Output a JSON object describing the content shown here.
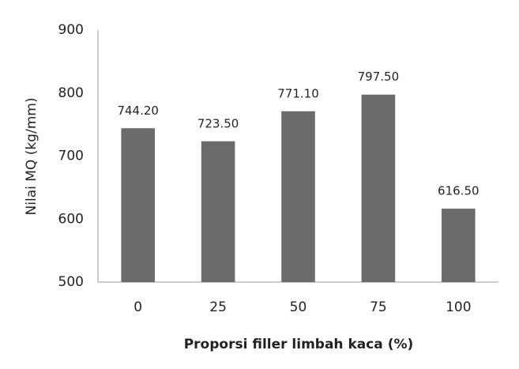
{
  "chart_data": {
    "type": "bar",
    "x_label": "Proporsi filler limbah kaca (%)",
    "y_label": "Nilai MQ (kg/mm)",
    "categories": [
      "0",
      "25",
      "50",
      "75",
      "100"
    ],
    "values": [
      744.2,
      723.5,
      771.1,
      797.5,
      616.5
    ],
    "value_labels": [
      "744.20",
      "723.50",
      "771.10",
      "797.50",
      "616.50"
    ],
    "color": "#6b6b6b",
    "ylim": [
      500,
      900
    ],
    "yticks": [
      500,
      600,
      700,
      800,
      900
    ],
    "grid": false
  }
}
